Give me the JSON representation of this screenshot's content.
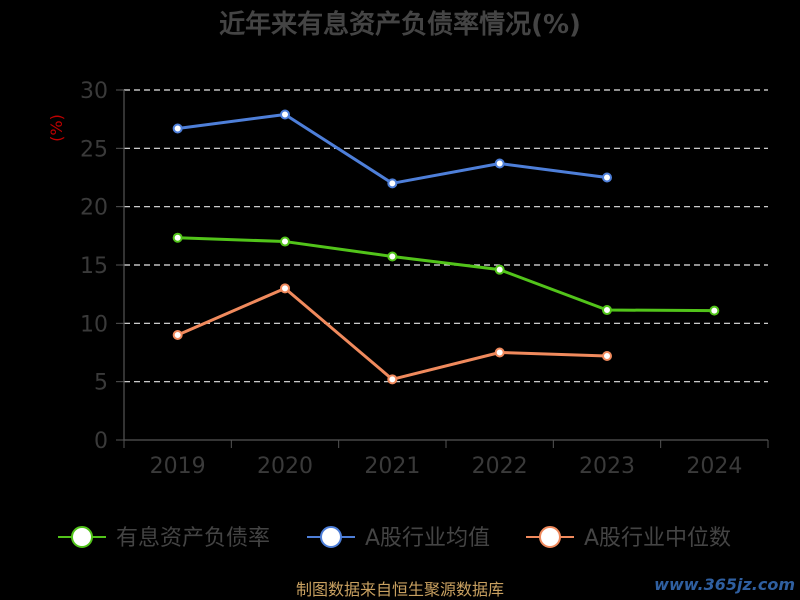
{
  "chart_data": {
    "type": "line",
    "title": "近年来有息资产负债率情况(%)",
    "ylabel": "(%)",
    "ylim": [
      0,
      30
    ],
    "yticks": [
      0,
      5,
      10,
      15,
      20,
      25,
      30
    ],
    "categories": [
      "2019",
      "2020",
      "2021",
      "2022",
      "2023",
      "2024"
    ],
    "grid": true,
    "legend_position": "bottom",
    "series": [
      {
        "name": "有息资产负债率",
        "color": "#52c41a",
        "values": [
          17.34,
          17.01,
          15.73,
          14.6,
          11.14,
          11.09
        ]
      },
      {
        "name": "A股行业均值",
        "color": "#4e7fd9",
        "values": [
          26.7,
          27.9,
          22.0,
          23.7,
          22.5,
          null
        ]
      },
      {
        "name": "A股行业中位数",
        "color": "#f08a5d",
        "values": [
          9.0,
          13.0,
          5.2,
          7.5,
          7.2,
          null
        ]
      }
    ]
  },
  "source": "制图数据来自恒生聚源数据库",
  "watermark": "www.365jz.com"
}
